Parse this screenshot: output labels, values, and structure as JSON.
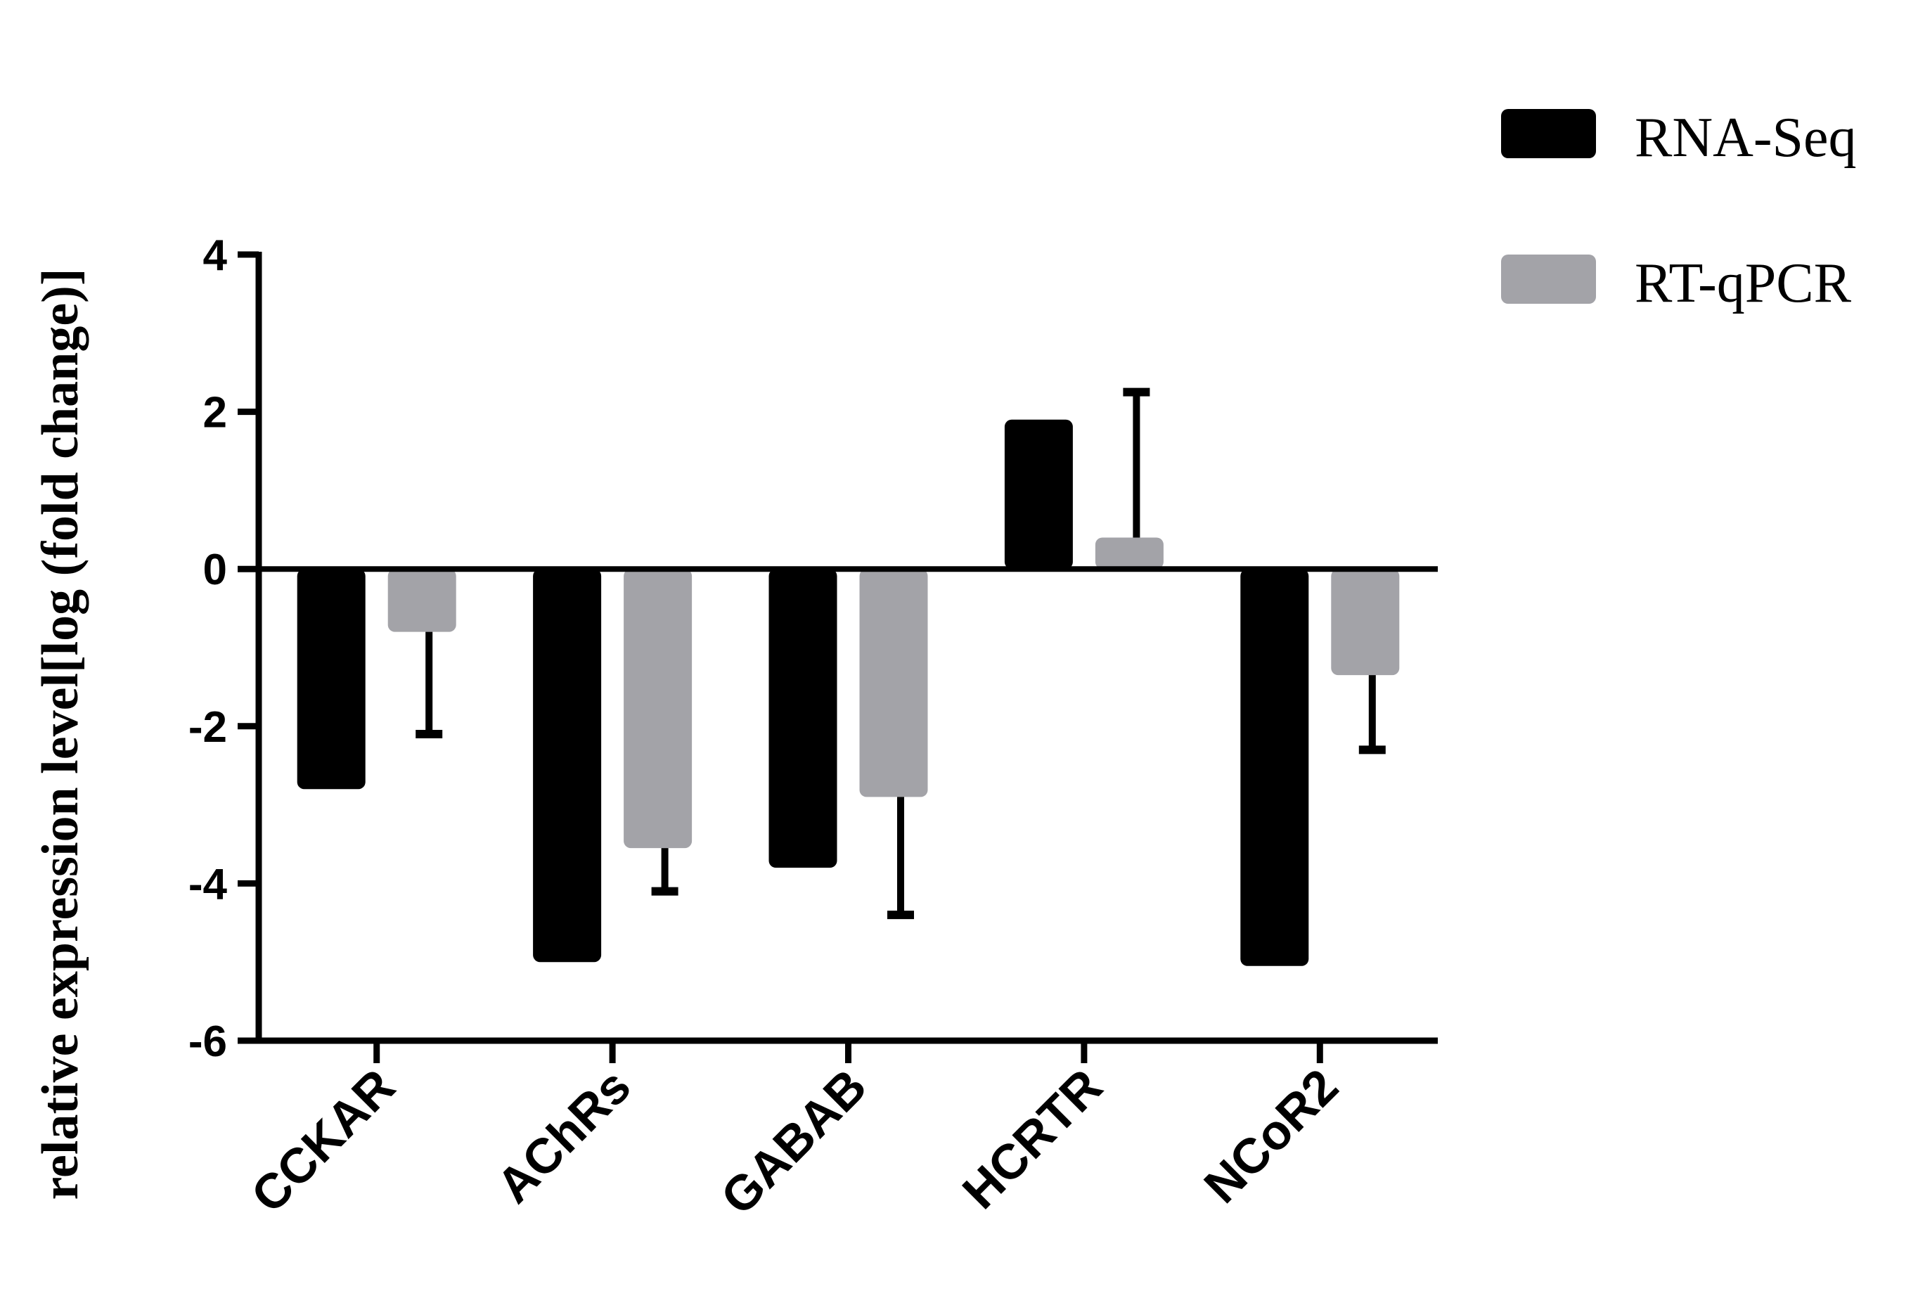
{
  "chart_data": {
    "type": "bar",
    "title": "",
    "xlabel": "",
    "ylabel": "relative expression level[log (fold change)]",
    "ylim": [
      -6,
      4
    ],
    "yticks": [
      4,
      2,
      0,
      -2,
      -4,
      -6
    ],
    "categories": [
      "CCKAR",
      "AChRs",
      "GABAB",
      "HCRTR",
      "NCoR2"
    ],
    "series": [
      {
        "name": "RNA-Seq",
        "color": "#000000",
        "values": [
          -2.8,
          -5.0,
          -3.8,
          1.9,
          -5.05
        ],
        "error": [
          null,
          null,
          null,
          null,
          null
        ]
      },
      {
        "name": "RT-qPCR",
        "color": "#a3a3a8",
        "values": [
          -0.8,
          -3.55,
          -2.9,
          0.4,
          -1.35
        ],
        "error": [
          1.3,
          0.55,
          1.5,
          1.85,
          0.95
        ]
      }
    ],
    "legend_position": "top-right",
    "grid": false
  }
}
